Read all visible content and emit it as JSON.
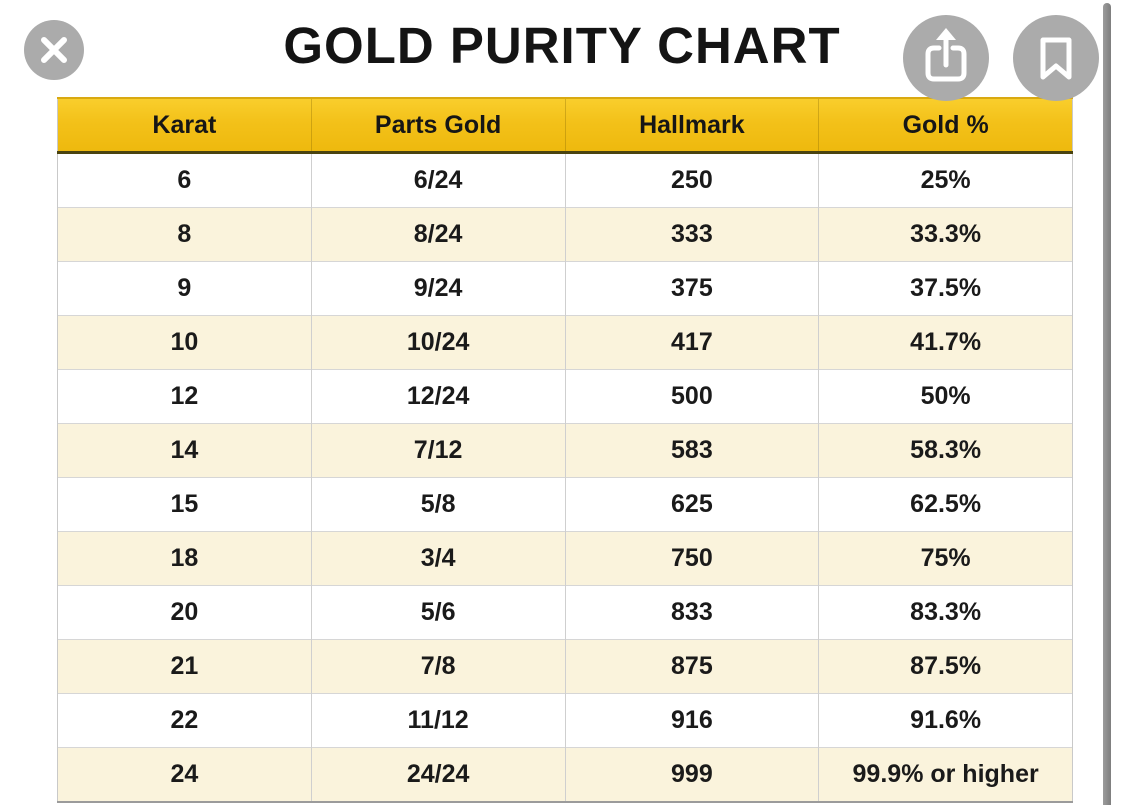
{
  "viewer": {
    "title": "GOLD PURITY CHART",
    "buttons": {
      "close_label": "Close",
      "share_label": "Share",
      "bookmark_label": "Bookmark"
    }
  },
  "table": {
    "columns": [
      "Karat",
      "Parts Gold",
      "Hallmark",
      "Gold %"
    ],
    "rows": [
      [
        "6",
        "6/24",
        "250",
        "25%"
      ],
      [
        "8",
        "8/24",
        "333",
        "33.3%"
      ],
      [
        "9",
        "9/24",
        "375",
        "37.5%"
      ],
      [
        "10",
        "10/24",
        "417",
        "41.7%"
      ],
      [
        "12",
        "12/24",
        "500",
        "50%"
      ],
      [
        "14",
        "7/12",
        "583",
        "58.3%"
      ],
      [
        "15",
        "5/8",
        "625",
        "62.5%"
      ],
      [
        "18",
        "3/4",
        "750",
        "75%"
      ],
      [
        "20",
        "5/6",
        "833",
        "83.3%"
      ],
      [
        "21",
        "7/8",
        "875",
        "87.5%"
      ],
      [
        "22",
        "11/12",
        "916",
        "91.6%"
      ],
      [
        "24",
        "24/24",
        "999",
        "99.9% or higher"
      ]
    ]
  },
  "chart_data": {
    "type": "table",
    "title": "GOLD PURITY CHART",
    "columns": [
      "Karat",
      "Parts Gold",
      "Hallmark",
      "Gold %"
    ],
    "rows": [
      [
        "6",
        "6/24",
        "250",
        "25%"
      ],
      [
        "8",
        "8/24",
        "333",
        "33.3%"
      ],
      [
        "9",
        "9/24",
        "375",
        "37.5%"
      ],
      [
        "10",
        "10/24",
        "417",
        "41.7%"
      ],
      [
        "12",
        "12/24",
        "500",
        "50%"
      ],
      [
        "14",
        "7/12",
        "583",
        "58.3%"
      ],
      [
        "15",
        "5/8",
        "625",
        "62.5%"
      ],
      [
        "18",
        "3/4",
        "750",
        "75%"
      ],
      [
        "20",
        "5/6",
        "833",
        "83.3%"
      ],
      [
        "21",
        "7/8",
        "875",
        "87.5%"
      ],
      [
        "22",
        "11/12",
        "916",
        "91.6%"
      ],
      [
        "24",
        "24/24",
        "999",
        "99.9% or higher"
      ]
    ],
    "layout_hints": {
      "header_style": "gold band with bold black labels",
      "row_striping": "white / cream alternating starting white"
    }
  },
  "icons": [
    "close-icon",
    "share-icon",
    "bookmark-icon"
  ],
  "colors": {
    "header_gold": "#f3c119",
    "header_border_dark": "#4a430f",
    "row_cream": "#faf3dc",
    "row_white": "#ffffff",
    "grid_line": "#cfcfcf",
    "button_gray": "#ababab",
    "title_black": "#141414"
  }
}
